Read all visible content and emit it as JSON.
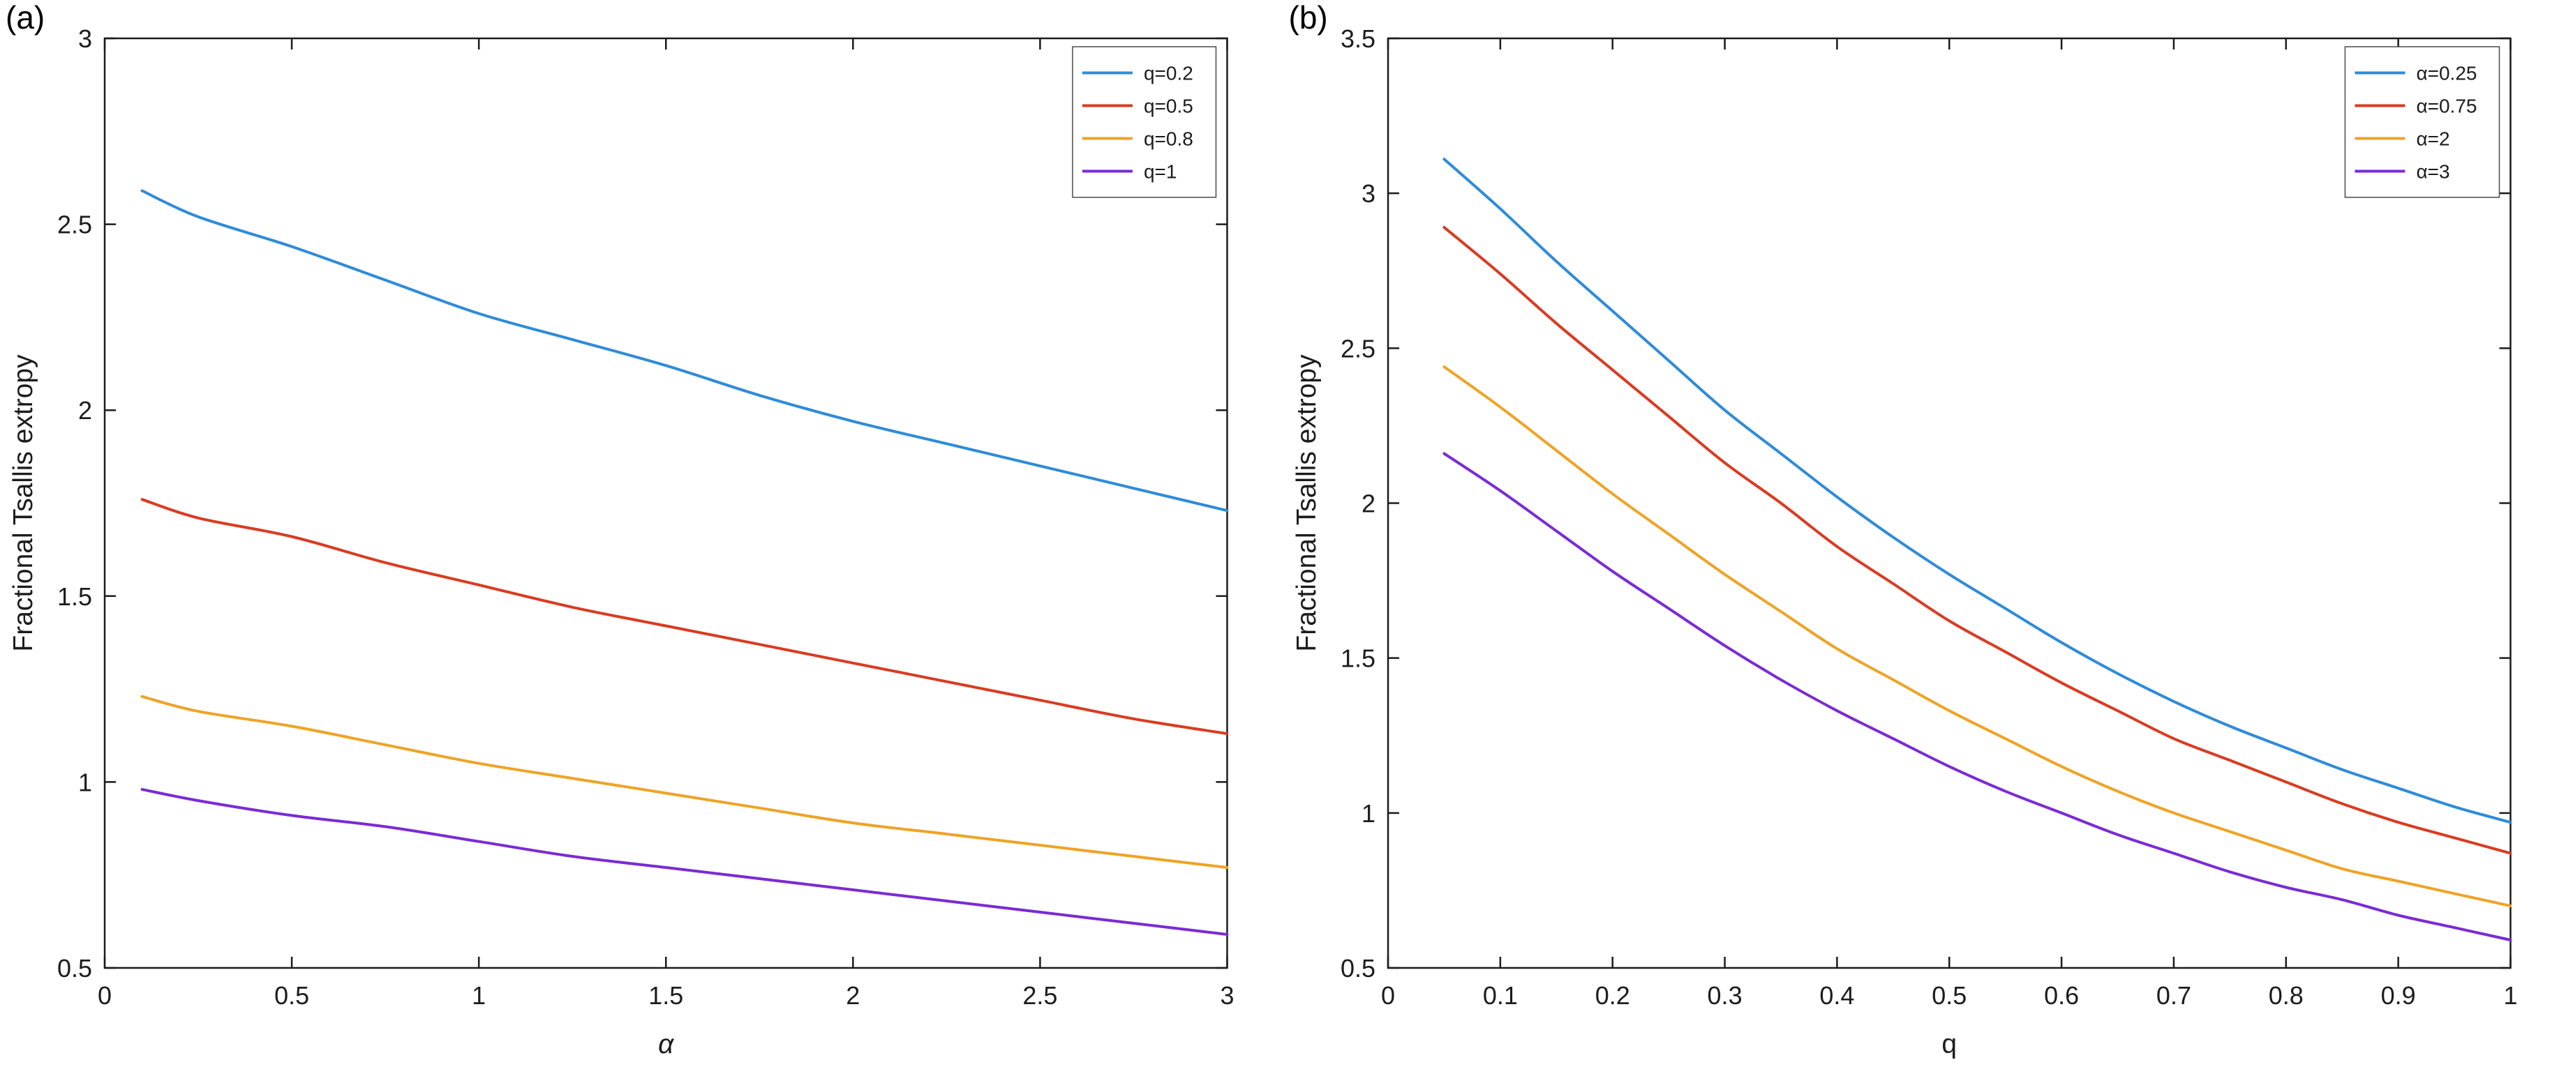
{
  "figure": {
    "background": "#ffffff",
    "axis_color": "#1c1c1c"
  },
  "chart_data": [
    {
      "type": "line",
      "panel_label": "(a)",
      "title": "",
      "xlabel": "α",
      "xlabel_italic": true,
      "ylabel": "Fractional Tsallis extropy",
      "xlim": [
        0,
        3
      ],
      "ylim": [
        0.5,
        3
      ],
      "xticks": [
        0,
        0.5,
        1,
        1.5,
        2,
        2.5,
        3
      ],
      "yticks": [
        0.5,
        1,
        1.5,
        2,
        2.5,
        3
      ],
      "grid": false,
      "legend_position": "top-right",
      "x": [
        0.1,
        0.25,
        0.5,
        0.75,
        1,
        1.25,
        1.5,
        1.75,
        2,
        2.25,
        2.5,
        2.75,
        3
      ],
      "series": [
        {
          "name": "q=0.2",
          "color": "#2E8BDA",
          "values": [
            2.59,
            2.52,
            2.44,
            2.35,
            2.26,
            2.19,
            2.12,
            2.04,
            1.97,
            1.91,
            1.85,
            1.79,
            1.73
          ]
        },
        {
          "name": "q=0.5",
          "color": "#DA3B21",
          "values": [
            1.76,
            1.71,
            1.66,
            1.59,
            1.53,
            1.47,
            1.42,
            1.37,
            1.32,
            1.27,
            1.22,
            1.17,
            1.13
          ]
        },
        {
          "name": "q=0.8",
          "color": "#EFA325",
          "values": [
            1.23,
            1.19,
            1.15,
            1.1,
            1.05,
            1.01,
            0.97,
            0.93,
            0.89,
            0.86,
            0.83,
            0.8,
            0.77
          ]
        },
        {
          "name": "q=1",
          "color": "#7A2BD6",
          "values": [
            0.98,
            0.95,
            0.91,
            0.88,
            0.84,
            0.8,
            0.77,
            0.74,
            0.71,
            0.68,
            0.65,
            0.62,
            0.59
          ]
        }
      ]
    },
    {
      "type": "line",
      "panel_label": "(b)",
      "title": "",
      "xlabel": "q",
      "xlabel_italic": false,
      "ylabel": "Fractional Tsallis extropy",
      "xlim": [
        0,
        1
      ],
      "ylim": [
        0.5,
        3.5
      ],
      "xticks": [
        0,
        0.1,
        0.2,
        0.3,
        0.4,
        0.5,
        0.6,
        0.7,
        0.8,
        0.9,
        1
      ],
      "yticks": [
        0.5,
        1,
        1.5,
        2,
        2.5,
        3,
        3.5
      ],
      "grid": false,
      "legend_position": "top-right",
      "x": [
        0.05,
        0.1,
        0.15,
        0.2,
        0.25,
        0.3,
        0.35,
        0.4,
        0.45,
        0.5,
        0.55,
        0.6,
        0.65,
        0.7,
        0.75,
        0.8,
        0.85,
        0.9,
        0.95,
        1
      ],
      "series": [
        {
          "name": "α=0.25",
          "color": "#2E8BDA",
          "values": [
            3.11,
            2.95,
            2.78,
            2.62,
            2.46,
            2.3,
            2.16,
            2.02,
            1.89,
            1.77,
            1.66,
            1.55,
            1.45,
            1.36,
            1.28,
            1.21,
            1.14,
            1.08,
            1.02,
            0.97
          ]
        },
        {
          "name": "α=0.75",
          "color": "#DA3B21",
          "values": [
            2.89,
            2.74,
            2.58,
            2.43,
            2.28,
            2.13,
            2.0,
            1.86,
            1.74,
            1.62,
            1.52,
            1.42,
            1.33,
            1.24,
            1.17,
            1.1,
            1.03,
            0.97,
            0.92,
            0.87
          ]
        },
        {
          "name": "α=2",
          "color": "#EFA325",
          "values": [
            2.44,
            2.31,
            2.17,
            2.03,
            1.9,
            1.77,
            1.65,
            1.53,
            1.43,
            1.33,
            1.24,
            1.15,
            1.07,
            1.0,
            0.94,
            0.88,
            0.82,
            0.78,
            0.74,
            0.7
          ]
        },
        {
          "name": "α=3",
          "color": "#7A2BD6",
          "values": [
            2.16,
            2.04,
            1.91,
            1.78,
            1.66,
            1.54,
            1.43,
            1.33,
            1.24,
            1.15,
            1.07,
            1.0,
            0.93,
            0.87,
            0.81,
            0.76,
            0.72,
            0.67,
            0.63,
            0.59
          ]
        }
      ]
    }
  ]
}
